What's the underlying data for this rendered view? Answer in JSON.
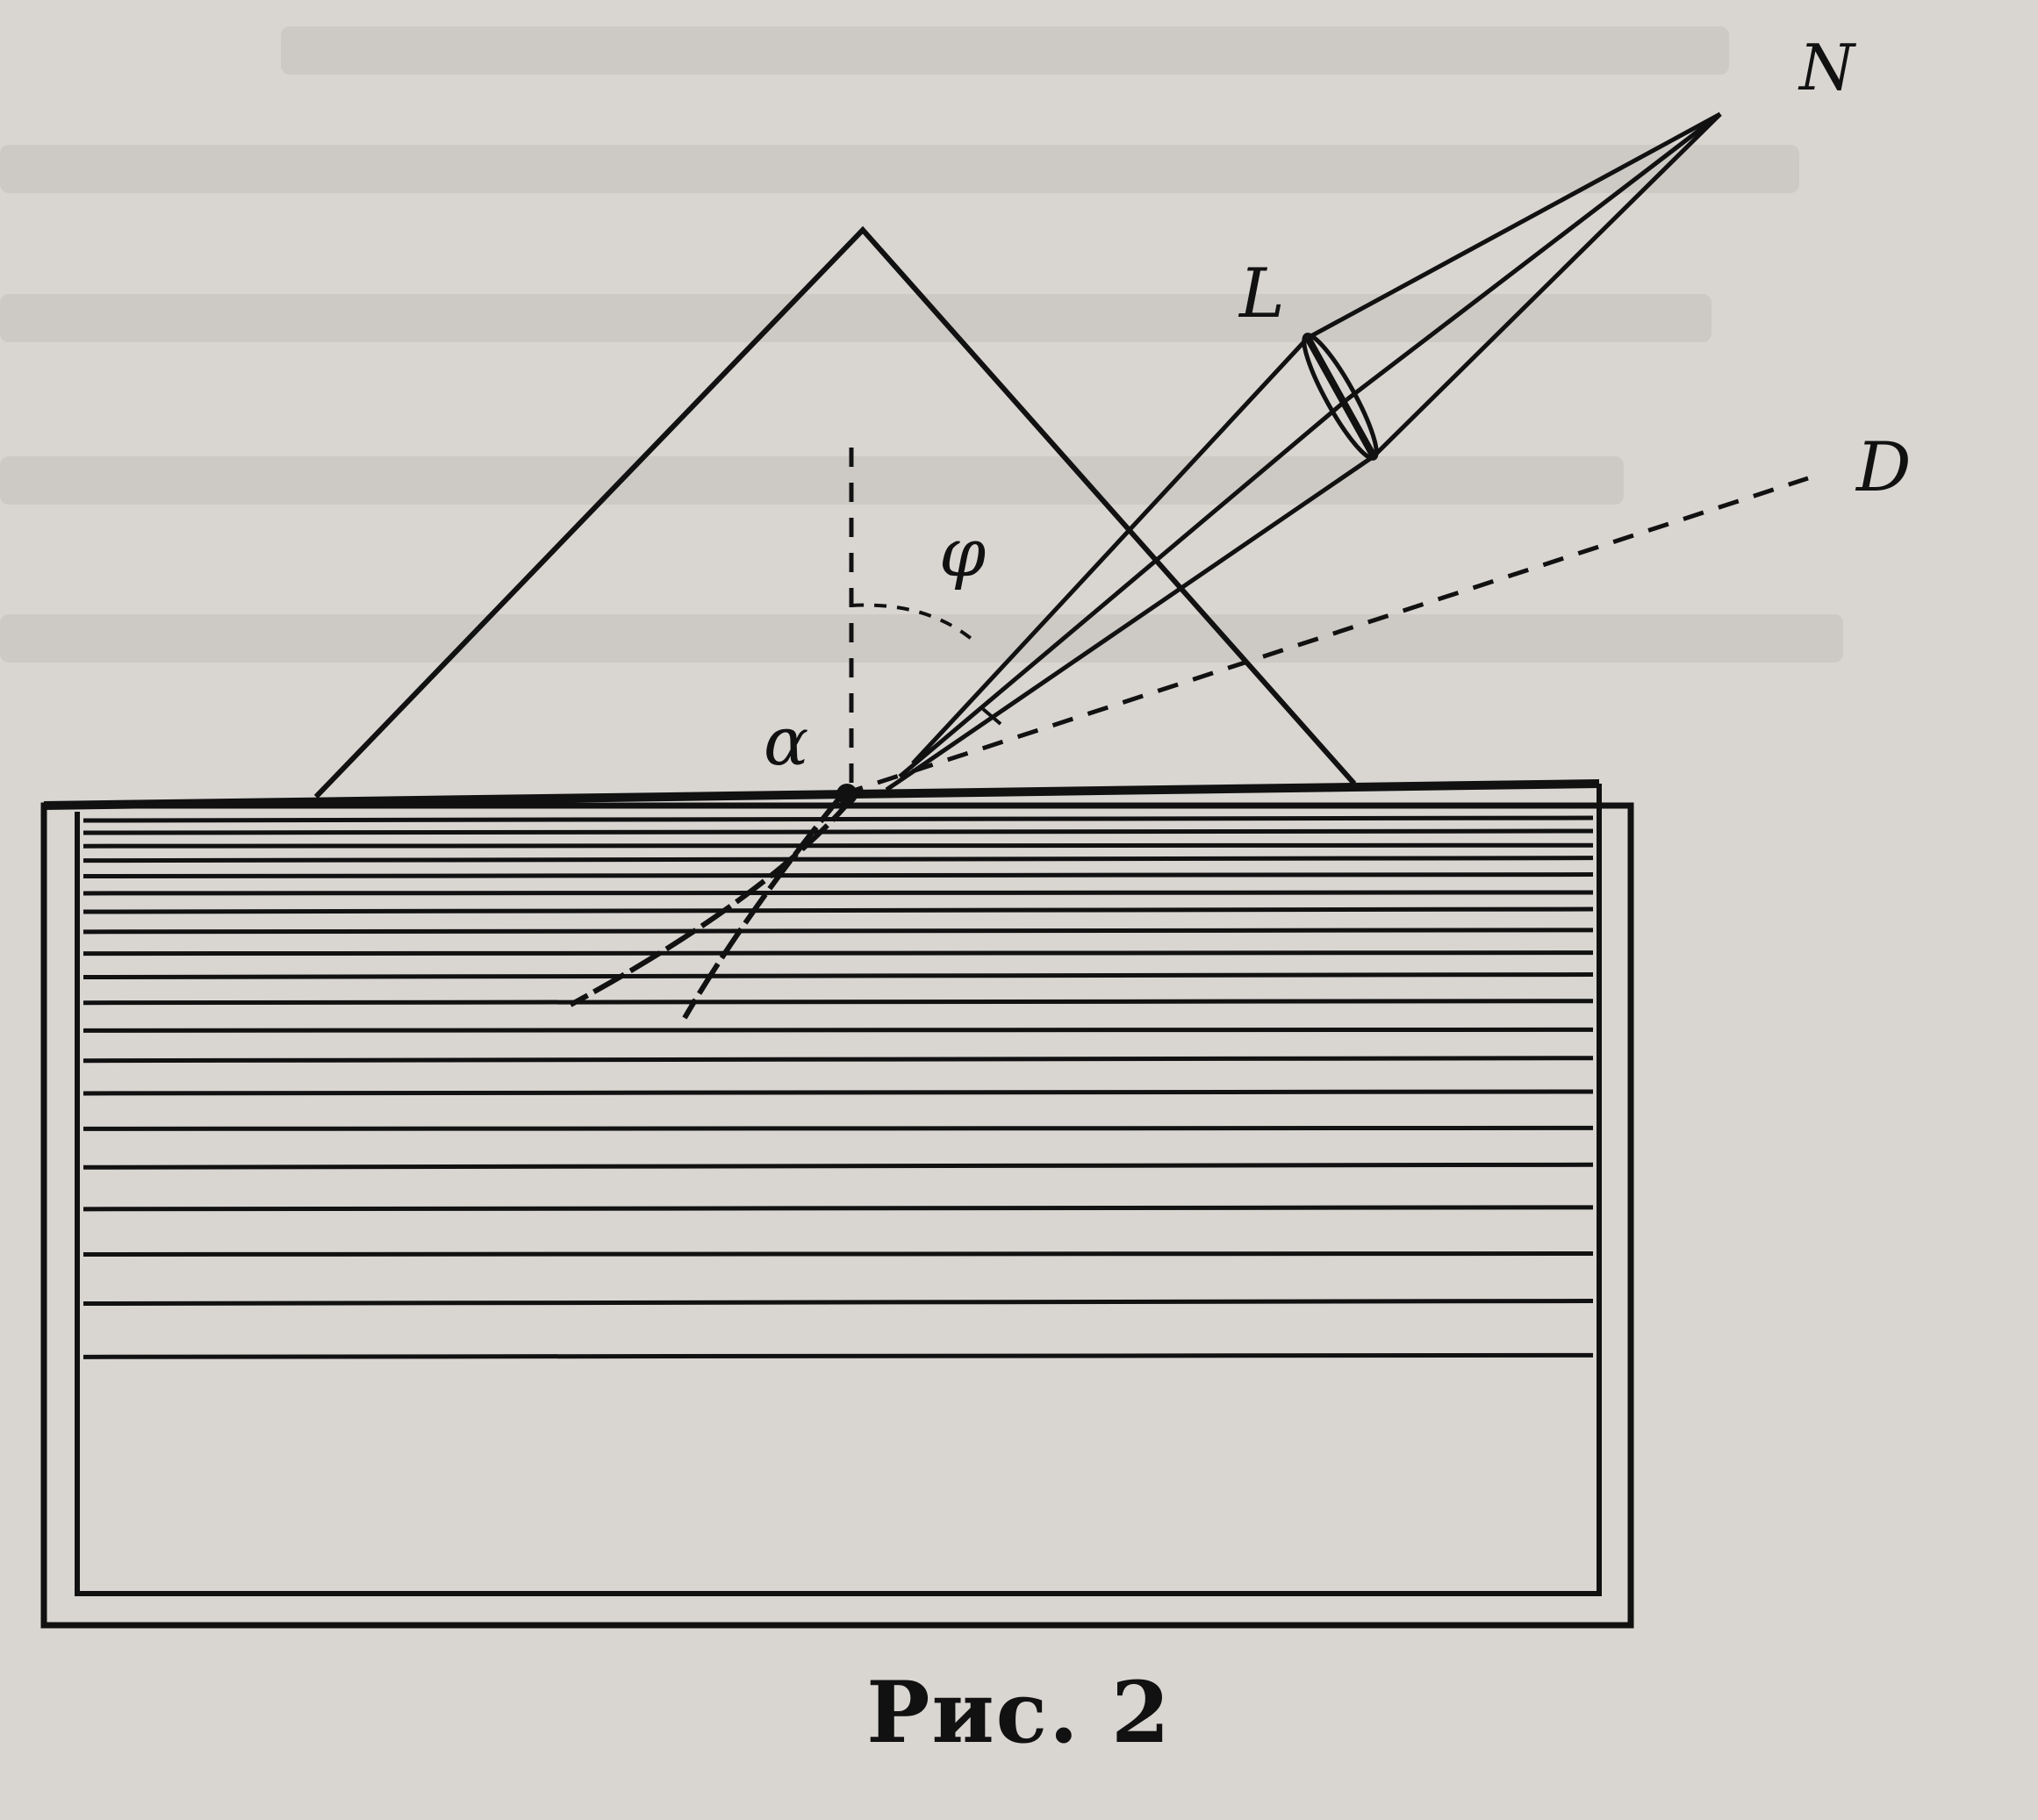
{
  "figure": {
    "caption": "Рис. 2",
    "labels": {
      "N": "N",
      "L": "L",
      "D": "D",
      "phi": "φ",
      "alpha": "α"
    }
  },
  "colors": {
    "paper": "#d9d6d2",
    "ink": "#111111",
    "faded_text": "#bfbbb6"
  }
}
